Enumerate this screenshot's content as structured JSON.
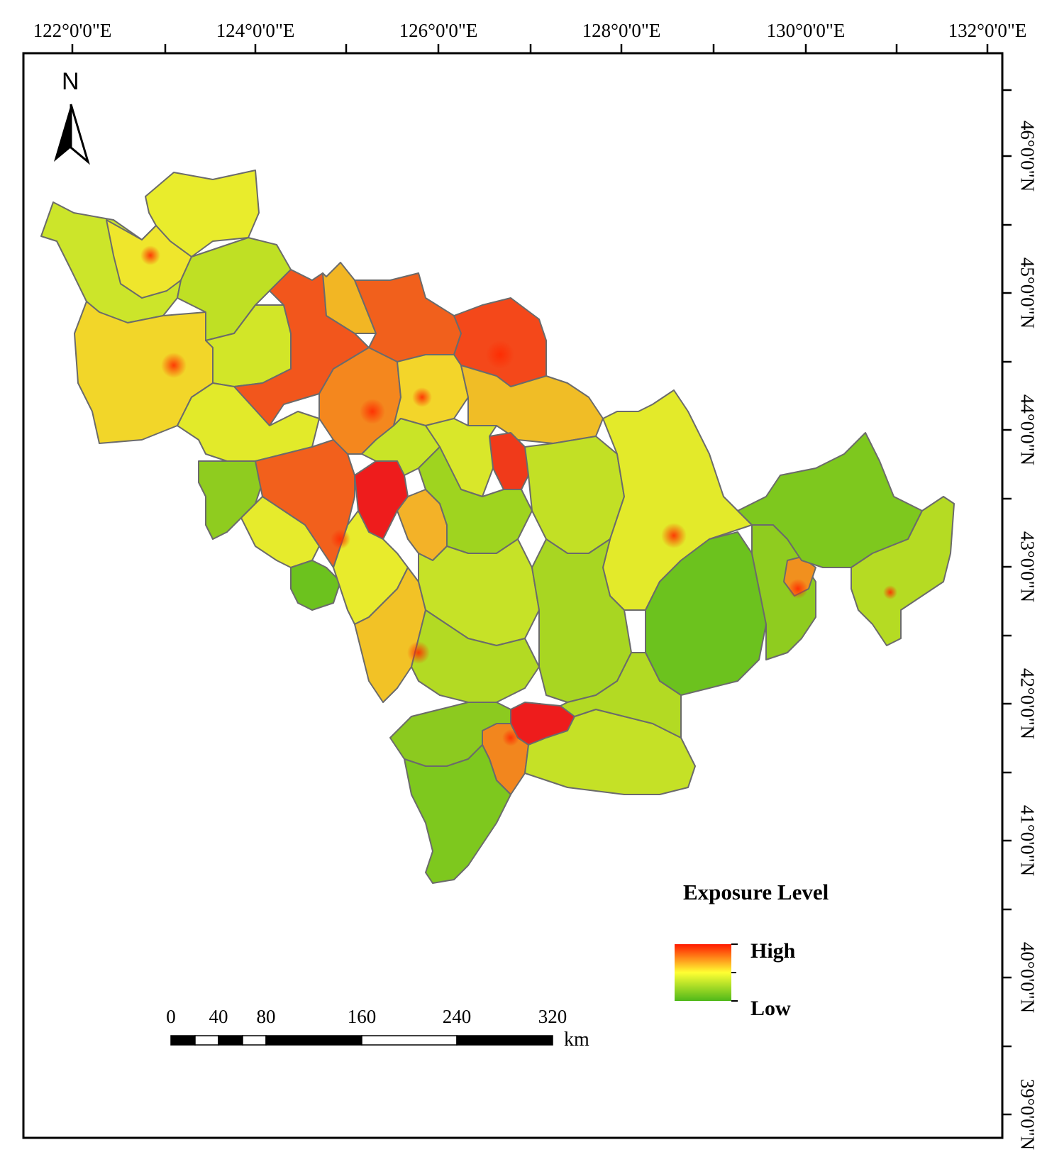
{
  "map": {
    "lon_labels": [
      "122°0'0\"E",
      "124°0'0\"E",
      "126°0'0\"E",
      "128°0'0\"E",
      "130°0'0\"E",
      "132°0'0\"E"
    ],
    "lat_labels": [
      "46°0'0\"N",
      "45°0'0\"N",
      "44°0'0\"N",
      "43°0'0\"N",
      "42°0'0\"N",
      "41°0'0\"N",
      "40°0'0\"N",
      "39°0'0\"N"
    ],
    "north_arrow": {
      "letter": "N",
      "icon": "north-arrow-icon"
    },
    "legend": {
      "title": "Exposure Level",
      "high_label": "High",
      "low_label": "Low",
      "colors": {
        "high": "#ff1a00",
        "mid": "#ffff33",
        "low": "#4fb81a"
      }
    },
    "scale_bar": {
      "ticks": [
        "0",
        "40",
        "80",
        "160",
        "240",
        "320"
      ],
      "unit": "km"
    },
    "region_colors": {
      "very_high": "#ee1c1c",
      "high": "#f2561c",
      "med_high": "#f4951e",
      "medium": "#f3d21a",
      "med_low": "#e3ec1e",
      "low": "#b8dc22",
      "very_low": "#7ec81e",
      "lowest": "#5bbd1c",
      "boundary": "#6b6b6b"
    }
  }
}
